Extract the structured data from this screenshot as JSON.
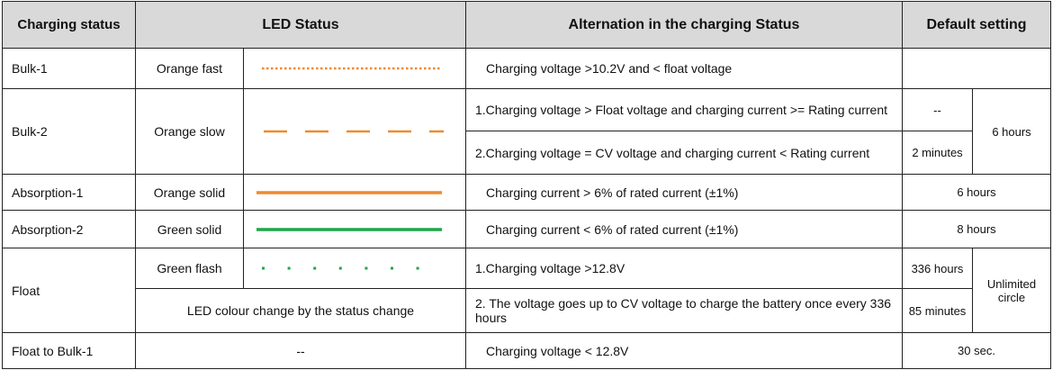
{
  "header": {
    "status": "Charging status",
    "led": "LED Status",
    "alternation": "Alternation in the charging Status",
    "default": "Default setting"
  },
  "rows": [
    {
      "status": "Bulk-1",
      "led": "Orange fast",
      "alternation": "Charging voltage >10.2V and < float voltage"
    },
    {
      "status": "Bulk-2",
      "led": "Orange slow",
      "alternation1": "1.Charging voltage > Float voltage and charging current >= Rating current",
      "default1": "--",
      "alternation2": "2.Charging voltage = CV voltage and charging current < Rating current",
      "default2": "2 minutes",
      "default": "6 hours"
    },
    {
      "status": "Absorption-1",
      "led": "Orange solid",
      "alternation": "Charging current > 6% of rated current (±1%)",
      "default": "6 hours"
    },
    {
      "status": "Absorption-2",
      "led": "Green solid",
      "alternation": "Charging current < 6% of rated current (±1%)",
      "default": "8 hours"
    },
    {
      "status": "Float",
      "led": "Green flash",
      "alternation1": "1.Charging voltage >12.8V",
      "default1": "336 hours",
      "led2": "LED colour change by the status change",
      "alternation2": "2. The voltage goes up to CV voltage to charge the battery once every 336 hours",
      "default2": "85 minutes",
      "default": "Unlimited circle"
    },
    {
      "status": "Float to Bulk-1",
      "led": "--",
      "alternation": "Charging voltage < 12.8V",
      "default": "30 sec."
    }
  ]
}
